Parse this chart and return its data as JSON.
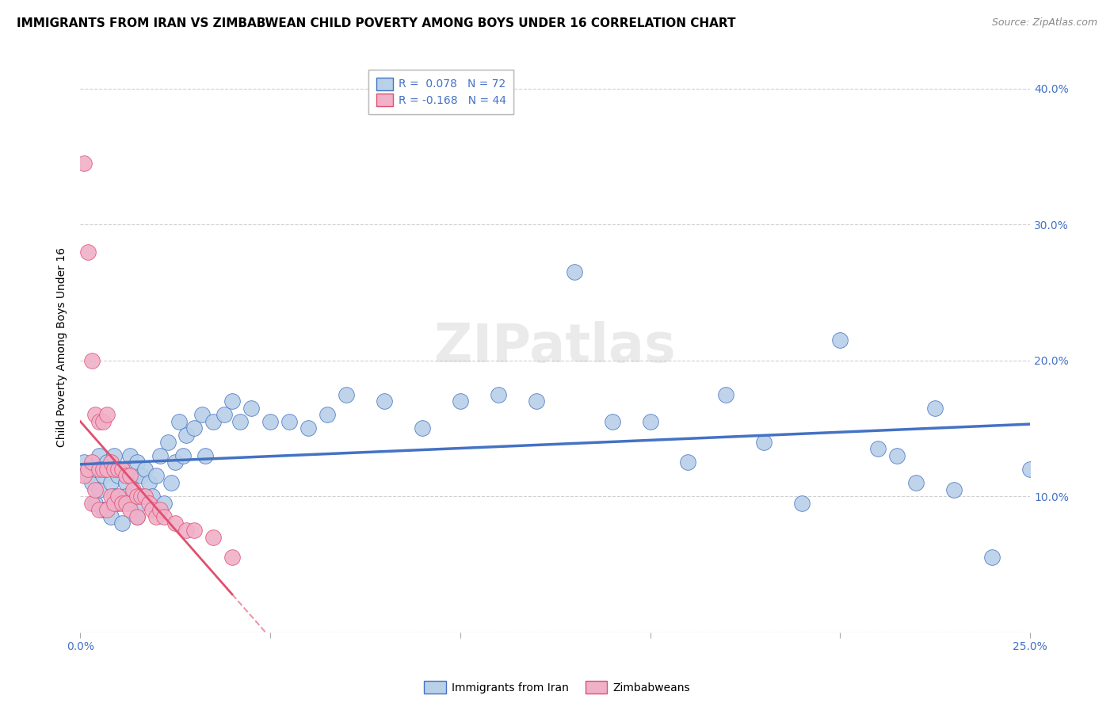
{
  "title": "IMMIGRANTS FROM IRAN VS ZIMBABWEAN CHILD POVERTY AMONG BOYS UNDER 16 CORRELATION CHART",
  "source": "Source: ZipAtlas.com",
  "ylabel": "Child Poverty Among Boys Under 16",
  "xlim": [
    0.0,
    0.25
  ],
  "ylim": [
    0.0,
    0.42
  ],
  "x_ticks": [
    0.0,
    0.05,
    0.1,
    0.15,
    0.2,
    0.25
  ],
  "y_ticks": [
    0.0,
    0.1,
    0.2,
    0.3,
    0.4
  ],
  "legend_label1": "R =  0.078   N = 72",
  "legend_label2": "R = -0.168   N = 44",
  "legend_entry1": "Immigrants from Iran",
  "legend_entry2": "Zimbabweans",
  "color_blue": "#b8d0e8",
  "color_pink": "#f0b0c8",
  "line_color_blue": "#4472c4",
  "line_color_pink": "#e05070",
  "watermark": "ZIPatlas",
  "blue_scatter_x": [
    0.001,
    0.002,
    0.003,
    0.004,
    0.004,
    0.005,
    0.005,
    0.006,
    0.006,
    0.007,
    0.008,
    0.008,
    0.009,
    0.009,
    0.01,
    0.01,
    0.011,
    0.011,
    0.012,
    0.012,
    0.013,
    0.013,
    0.014,
    0.015,
    0.015,
    0.016,
    0.016,
    0.017,
    0.018,
    0.019,
    0.02,
    0.021,
    0.022,
    0.023,
    0.024,
    0.025,
    0.026,
    0.027,
    0.028,
    0.03,
    0.032,
    0.033,
    0.035,
    0.038,
    0.04,
    0.042,
    0.045,
    0.05,
    0.055,
    0.06,
    0.065,
    0.07,
    0.08,
    0.09,
    0.1,
    0.11,
    0.12,
    0.13,
    0.14,
    0.15,
    0.16,
    0.17,
    0.18,
    0.19,
    0.2,
    0.21,
    0.215,
    0.22,
    0.225,
    0.23,
    0.24,
    0.25
  ],
  "blue_scatter_y": [
    0.125,
    0.115,
    0.11,
    0.12,
    0.095,
    0.13,
    0.105,
    0.115,
    0.09,
    0.125,
    0.11,
    0.085,
    0.13,
    0.1,
    0.115,
    0.095,
    0.12,
    0.08,
    0.11,
    0.1,
    0.095,
    0.13,
    0.115,
    0.125,
    0.085,
    0.115,
    0.095,
    0.12,
    0.11,
    0.1,
    0.115,
    0.13,
    0.095,
    0.14,
    0.11,
    0.125,
    0.155,
    0.13,
    0.145,
    0.15,
    0.16,
    0.13,
    0.155,
    0.16,
    0.17,
    0.155,
    0.165,
    0.155,
    0.155,
    0.15,
    0.16,
    0.175,
    0.17,
    0.15,
    0.17,
    0.175,
    0.17,
    0.265,
    0.155,
    0.155,
    0.125,
    0.175,
    0.14,
    0.095,
    0.215,
    0.135,
    0.13,
    0.11,
    0.165,
    0.105,
    0.055,
    0.12
  ],
  "pink_scatter_x": [
    0.001,
    0.001,
    0.002,
    0.002,
    0.003,
    0.003,
    0.003,
    0.004,
    0.004,
    0.005,
    0.005,
    0.005,
    0.006,
    0.006,
    0.007,
    0.007,
    0.007,
    0.008,
    0.008,
    0.009,
    0.009,
    0.01,
    0.01,
    0.011,
    0.011,
    0.012,
    0.012,
    0.013,
    0.013,
    0.014,
    0.015,
    0.015,
    0.016,
    0.017,
    0.018,
    0.019,
    0.02,
    0.021,
    0.022,
    0.025,
    0.028,
    0.03,
    0.035,
    0.04
  ],
  "pink_scatter_y": [
    0.345,
    0.115,
    0.28,
    0.12,
    0.2,
    0.125,
    0.095,
    0.16,
    0.105,
    0.155,
    0.12,
    0.09,
    0.155,
    0.12,
    0.16,
    0.12,
    0.09,
    0.125,
    0.1,
    0.12,
    0.095,
    0.12,
    0.1,
    0.12,
    0.095,
    0.115,
    0.095,
    0.115,
    0.09,
    0.105,
    0.1,
    0.085,
    0.1,
    0.1,
    0.095,
    0.09,
    0.085,
    0.09,
    0.085,
    0.08,
    0.075,
    0.075,
    0.07,
    0.055
  ],
  "title_fontsize": 11,
  "source_fontsize": 9,
  "axis_label_fontsize": 10,
  "tick_fontsize": 10,
  "legend_fontsize": 10,
  "watermark_fontsize": 48,
  "background_color": "#ffffff",
  "grid_color": "#d0d0d0",
  "tick_color_blue": "#4472c4"
}
